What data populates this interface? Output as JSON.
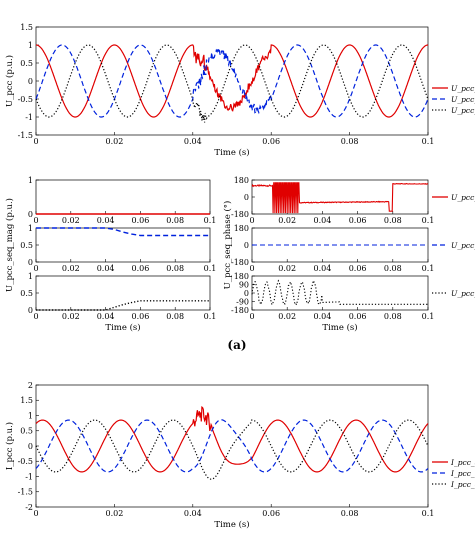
{
  "chart_data": [
    {
      "id": "upcc",
      "type": "line",
      "ylabel": "U_pcc (p.u.)",
      "xlabel": "Time (s)",
      "xlim": [
        0,
        0.1
      ],
      "ylim": [
        -1.5,
        1.5
      ],
      "xticks": [
        "0",
        "0.02",
        "0.04",
        "0.06",
        "0.08",
        "0.1"
      ],
      "yticks": [
        "1.5",
        "1",
        "0.5",
        "0",
        "-0.5",
        "-1",
        "-1.5"
      ],
      "series": [
        {
          "name": "U_pcc_a",
          "color": "#e00000",
          "style": "solid",
          "phase_deg": 90,
          "amplitude_fault": 0.75
        },
        {
          "name": "U_pcc_b",
          "color": "#0022dd",
          "style": "dashed",
          "phase_deg": -30,
          "amplitude_fault": 0.8
        },
        {
          "name": "U_pcc_c",
          "color": "#000000",
          "style": "dotted",
          "phase_deg": 210,
          "amplitude_fault": 1.0
        }
      ],
      "frequency_hz": 50,
      "fault_interval": [
        0.04,
        0.06
      ]
    },
    {
      "id": "mag",
      "type": "line",
      "ylabel": "U_pcc_seq_mag (p.u.)",
      "xlabel": "Time (s)",
      "xlim": [
        0,
        0.1
      ],
      "panels": [
        {
          "ylim": [
            0,
            1
          ],
          "yticks": [
            "1",
            "0"
          ],
          "series": {
            "name": "U_pcc_0",
            "color": "#e00000",
            "style": "solid",
            "x": [
              0,
              0.1
            ],
            "y": [
              0,
              0
            ]
          }
        },
        {
          "ylim": [
            0,
            1
          ],
          "yticks": [
            "1",
            "0.5",
            "0"
          ],
          "series": {
            "name": "U_pcc_1",
            "color": "#0022dd",
            "style": "dashed",
            "x": [
              0,
              0.04,
              0.045,
              0.05,
              0.055,
              0.06,
              0.1
            ],
            "y": [
              1.0,
              1.0,
              0.96,
              0.88,
              0.82,
              0.78,
              0.78
            ]
          }
        },
        {
          "ylim": [
            0,
            1
          ],
          "yticks": [
            "1",
            "0.5",
            "0"
          ],
          "series": {
            "name": "U_pcc_2",
            "color": "#000000",
            "style": "dotted",
            "x": [
              0,
              0.04,
              0.045,
              0.05,
              0.055,
              0.06,
              0.1
            ],
            "y": [
              0.0,
              0.0,
              0.08,
              0.16,
              0.22,
              0.27,
              0.27
            ]
          }
        }
      ],
      "xticks": [
        "0",
        "0.02",
        "0.04",
        "0.06",
        "0.08",
        "0.1"
      ]
    },
    {
      "id": "phase",
      "type": "line",
      "ylabel": "U_pcc_seq_phase (°)",
      "xlabel": "Time (s)",
      "xlim": [
        0,
        0.1
      ],
      "xticks": [
        "0",
        "0.02",
        "0.04",
        "0.06",
        "0.08",
        "0.1"
      ],
      "panels": [
        {
          "ylim": [
            -180,
            180
          ],
          "yticks": [
            "180",
            "0",
            "-180"
          ],
          "series": {
            "name": "U_pcc_0",
            "color": "#e00000",
            "style": "solid"
          }
        },
        {
          "ylim": [
            -180,
            180
          ],
          "yticks": [
            "180",
            "0",
            "-180"
          ],
          "series": {
            "name": "U_pcc_1",
            "color": "#0022dd",
            "style": "dashed",
            "x": [
              0,
              0.1
            ],
            "y": [
              0,
              0
            ]
          }
        },
        {
          "ylim": [
            -180,
            180
          ],
          "yticks": [
            "180",
            "90",
            "0",
            "-90",
            "-180"
          ],
          "series": {
            "name": "U_pcc_2",
            "color": "#000000",
            "style": "dotted"
          }
        }
      ]
    },
    {
      "id": "ipcc",
      "type": "line",
      "ylabel": "I_pcc (p.u.)",
      "xlabel": "Time (s)",
      "xlim": [
        0,
        0.1
      ],
      "ylim": [
        -2,
        2
      ],
      "xticks": [
        "0",
        "0.02",
        "0.04",
        "0.06",
        "0.08",
        "0.1"
      ],
      "yticks": [
        "2",
        "1.5",
        "1",
        "0.5",
        "0",
        "-0.5",
        "-1",
        "-1.5",
        "-2"
      ],
      "series": [
        {
          "name": "I_pcc_a",
          "color": "#e00000",
          "style": "solid",
          "phase_deg": 60,
          "amplitude": 0.85
        },
        {
          "name": "I_pcc_b",
          "color": "#0022dd",
          "style": "dashed",
          "phase_deg": -60,
          "amplitude": 0.85
        },
        {
          "name": "I_pcc_c",
          "color": "#000000",
          "style": "dotted",
          "phase_deg": 180,
          "amplitude": 0.85
        }
      ],
      "frequency_hz": 50,
      "fault_interval": [
        0.04,
        0.06
      ]
    }
  ],
  "captions": {
    "a": "(a)"
  }
}
